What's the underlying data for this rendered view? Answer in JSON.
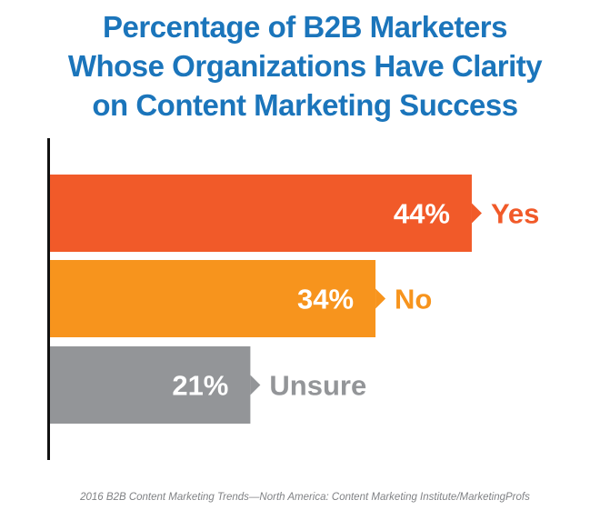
{
  "title_lines": [
    "Percentage of B2B Marketers",
    "Whose Organizations Have Clarity",
    "on Content Marketing Success"
  ],
  "source": "2016 B2B Content Marketing Trends—North America: Content Marketing Institute/MarketingProfs",
  "chart_data": {
    "type": "bar",
    "orientation": "horizontal",
    "title": "Percentage of B2B Marketers Whose Organizations Have Clarity on Content Marketing Success",
    "categories": [
      "Yes",
      "No",
      "Unsure"
    ],
    "values": [
      44,
      34,
      21
    ],
    "value_labels": [
      "44%",
      "34%",
      "21%"
    ],
    "unit": "%",
    "colors": [
      "#f15a29",
      "#f7941d",
      "#939598"
    ],
    "grid": false,
    "legend": "none"
  }
}
